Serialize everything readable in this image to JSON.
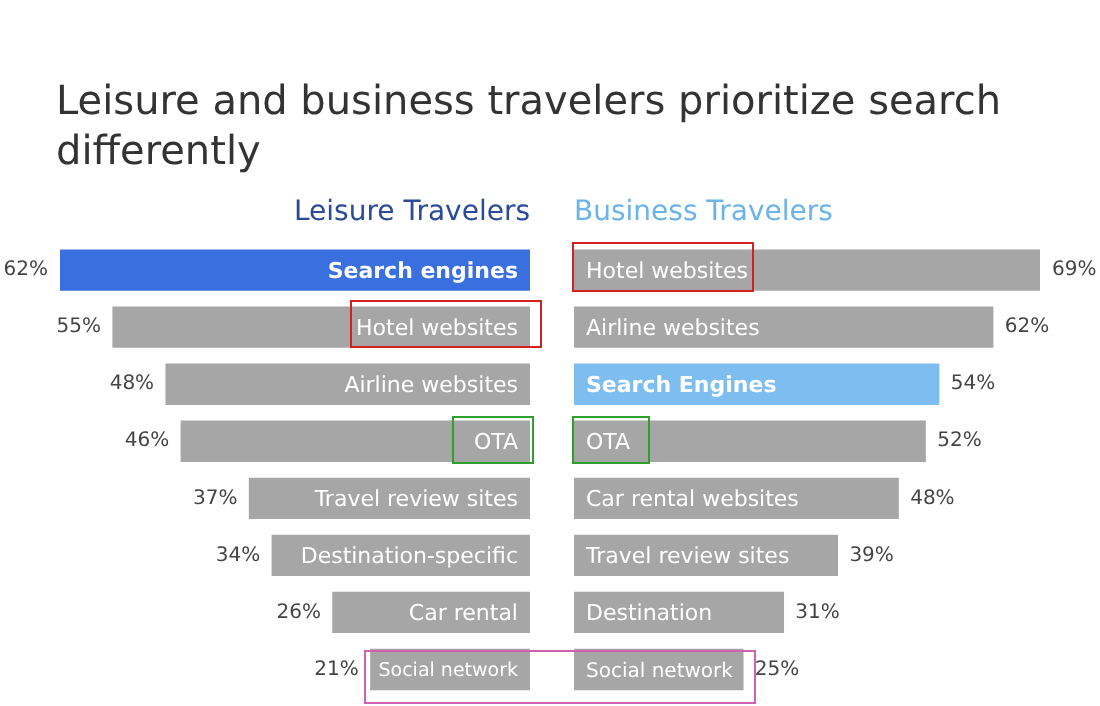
{
  "chart_data": [
    {
      "type": "bar",
      "orientation": "horizontal",
      "title": "Leisure Travelers",
      "annotations": [
        "Leisure and business travelers prioritize search differently"
      ],
      "categories": [
        "Search engines",
        "Hotel websites",
        "Airline websites",
        "OTA",
        "Travel review sites",
        "Destination-specific",
        "Car rental",
        "Social network"
      ],
      "xlim": [
        62,
        0
      ],
      "tick_labels": false,
      "legend": false,
      "series": [
        {
          "values": [
            62,
            55,
            48,
            46,
            37,
            34,
            26,
            21
          ],
          "value_labels": [
            "62%",
            "55%",
            "48%",
            "46%",
            "37%",
            "34%",
            "26%",
            "21%"
          ],
          "color": "#a6a6a6",
          "colors": [
            "#3a6fe0",
            "#a6a6a6",
            "#a6a6a6",
            "#a6a6a6",
            "#a6a6a6",
            "#a6a6a6",
            "#a6a6a6",
            "#a6a6a6"
          ]
        }
      ]
    },
    {
      "type": "bar",
      "orientation": "horizontal",
      "title": "Business Travelers",
      "categories": [
        "Hotel websites",
        "Airline websites",
        "Search Engines",
        "OTA",
        "Car rental websites",
        "Travel review sites",
        "Destination",
        "Social network"
      ],
      "xlim": [
        0,
        69
      ],
      "tick_labels": false,
      "legend": false,
      "series": [
        {
          "values": [
            69,
            62,
            54,
            52,
            48,
            39,
            31,
            25
          ],
          "value_labels": [
            "69%",
            "62%",
            "54%",
            "52%",
            "48%",
            "39%",
            "31%",
            "25%"
          ],
          "color": "#a6a6a6",
          "colors": [
            "#a6a6a6",
            "#a6a6a6",
            "#7dbdf0",
            "#a6a6a6",
            "#a6a6a6",
            "#a6a6a6",
            "#a6a6a6",
            "#a6a6a6"
          ]
        }
      ]
    }
  ]
}
